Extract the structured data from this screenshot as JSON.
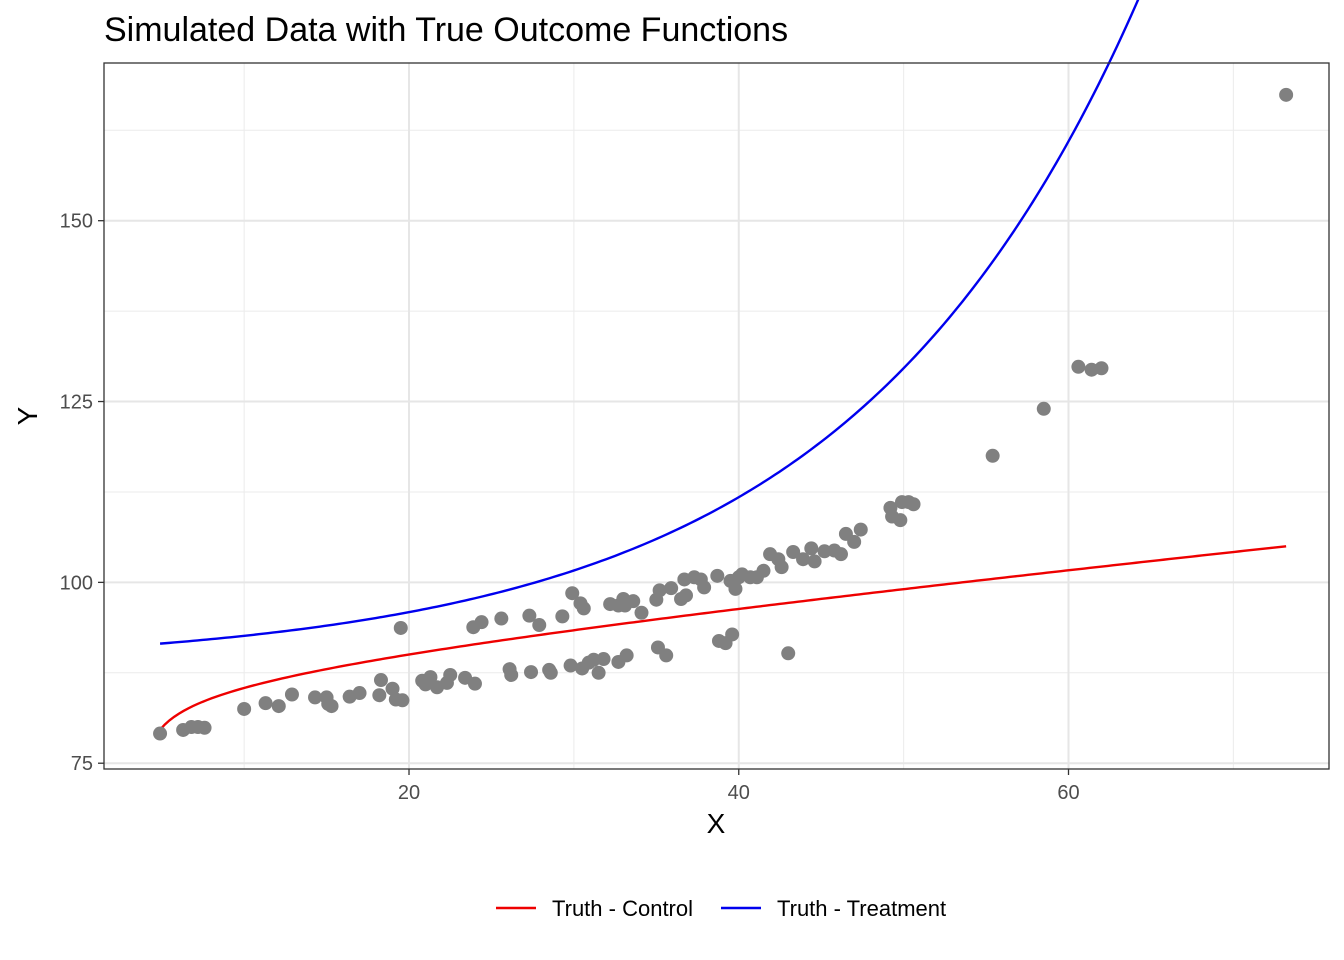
{
  "chart_data": {
    "type": "scatter",
    "title": "Simulated Data with True Outcome Functions",
    "xlabel": "X",
    "ylabel": "Y",
    "xlim": [
      1.5,
      75.8
    ],
    "ylim": [
      74.2,
      171.8
    ],
    "x_ticks": [
      20,
      40,
      60
    ],
    "y_ticks": [
      75,
      100,
      125,
      150
    ],
    "grid": true,
    "legend_position": "bottom",
    "point_color": "#808080",
    "points": [
      [
        4.9,
        79.1
      ],
      [
        6.3,
        79.6
      ],
      [
        6.8,
        80.0
      ],
      [
        7.2,
        80.0
      ],
      [
        7.6,
        79.9
      ],
      [
        10.0,
        82.5
      ],
      [
        11.3,
        83.3
      ],
      [
        12.1,
        82.9
      ],
      [
        12.9,
        84.5
      ],
      [
        14.3,
        84.1
      ],
      [
        15.0,
        84.1
      ],
      [
        15.1,
        83.2
      ],
      [
        15.3,
        82.9
      ],
      [
        16.4,
        84.2
      ],
      [
        17.0,
        84.7
      ],
      [
        18.2,
        84.4
      ],
      [
        18.3,
        86.5
      ],
      [
        19.0,
        85.3
      ],
      [
        19.2,
        83.8
      ],
      [
        19.6,
        83.7
      ],
      [
        20.8,
        86.4
      ],
      [
        21.0,
        85.9
      ],
      [
        21.3,
        86.9
      ],
      [
        21.7,
        85.5
      ],
      [
        22.3,
        86.1
      ],
      [
        22.5,
        87.2
      ],
      [
        23.4,
        86.8
      ],
      [
        24.0,
        86.0
      ],
      [
        26.1,
        88.0
      ],
      [
        26.2,
        87.2
      ],
      [
        27.4,
        87.6
      ],
      [
        28.5,
        87.9
      ],
      [
        28.6,
        87.5
      ],
      [
        29.8,
        88.5
      ],
      [
        30.5,
        88.1
      ],
      [
        30.9,
        88.9
      ],
      [
        31.2,
        89.3
      ],
      [
        31.5,
        87.5
      ],
      [
        31.8,
        89.4
      ],
      [
        32.7,
        89.0
      ],
      [
        33.2,
        89.9
      ],
      [
        35.1,
        91.0
      ],
      [
        35.6,
        89.9
      ],
      [
        38.8,
        91.9
      ],
      [
        39.2,
        91.6
      ],
      [
        39.6,
        92.8
      ],
      [
        43.0,
        90.2
      ],
      [
        19.5,
        93.7
      ],
      [
        23.9,
        93.8
      ],
      [
        24.4,
        94.5
      ],
      [
        25.6,
        95.0
      ],
      [
        27.3,
        95.4
      ],
      [
        27.9,
        94.1
      ],
      [
        29.3,
        95.3
      ],
      [
        29.9,
        98.5
      ],
      [
        30.4,
        97.1
      ],
      [
        30.6,
        96.4
      ],
      [
        32.2,
        97.0
      ],
      [
        32.7,
        96.8
      ],
      [
        33.0,
        97.7
      ],
      [
        33.1,
        96.8
      ],
      [
        33.6,
        97.4
      ],
      [
        34.1,
        95.8
      ],
      [
        35.0,
        97.6
      ],
      [
        35.2,
        98.9
      ],
      [
        35.9,
        99.2
      ],
      [
        36.5,
        97.7
      ],
      [
        36.8,
        98.2
      ],
      [
        36.7,
        100.4
      ],
      [
        37.3,
        100.7
      ],
      [
        37.7,
        100.4
      ],
      [
        37.9,
        99.3
      ],
      [
        38.7,
        100.9
      ],
      [
        39.5,
        100.2
      ],
      [
        39.8,
        99.1
      ],
      [
        40.0,
        100.7
      ],
      [
        40.2,
        101.1
      ],
      [
        40.7,
        100.7
      ],
      [
        41.1,
        100.7
      ],
      [
        41.5,
        101.6
      ],
      [
        41.9,
        103.9
      ],
      [
        42.4,
        103.2
      ],
      [
        42.6,
        102.1
      ],
      [
        43.3,
        104.2
      ],
      [
        43.9,
        103.2
      ],
      [
        44.4,
        104.7
      ],
      [
        44.6,
        102.9
      ],
      [
        45.2,
        104.3
      ],
      [
        45.8,
        104.4
      ],
      [
        46.2,
        103.9
      ],
      [
        46.5,
        106.7
      ],
      [
        47.0,
        105.6
      ],
      [
        47.4,
        107.3
      ],
      [
        49.2,
        110.3
      ],
      [
        49.3,
        109.1
      ],
      [
        49.8,
        108.6
      ],
      [
        49.9,
        111.1
      ],
      [
        50.3,
        111.1
      ],
      [
        50.6,
        110.8
      ],
      [
        55.4,
        117.5
      ],
      [
        58.5,
        124.0
      ],
      [
        60.6,
        129.8
      ],
      [
        61.4,
        129.4
      ],
      [
        62.0,
        129.6
      ],
      [
        73.2,
        167.4
      ]
    ],
    "series": [
      {
        "name": "Truth - Control",
        "color": "#ee0000",
        "x_range": [
          4.9,
          73.2
        ]
      },
      {
        "name": "Truth - Treatment",
        "color": "#0000ee",
        "x_range": [
          4.9,
          73.2
        ]
      }
    ]
  }
}
